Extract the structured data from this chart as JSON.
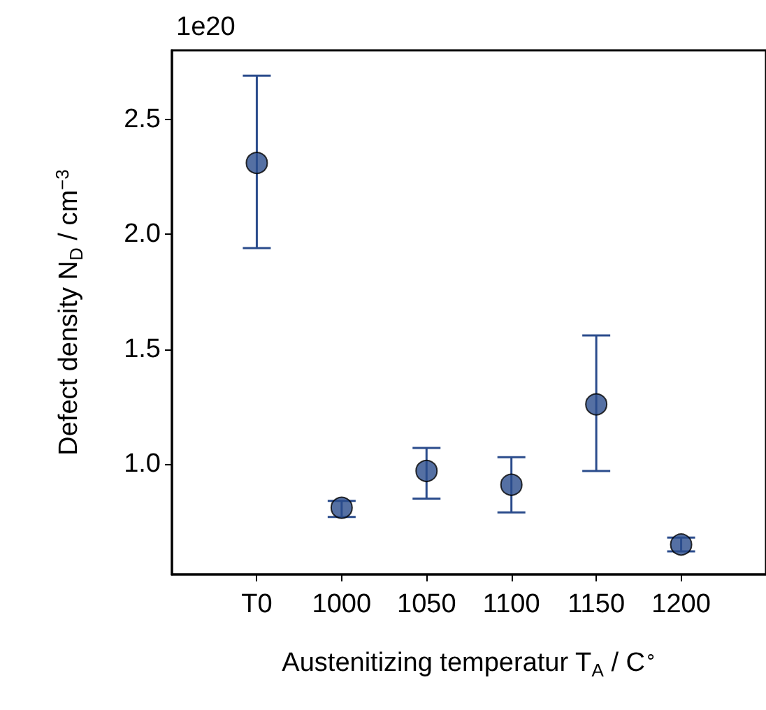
{
  "chart_data": {
    "type": "scatter",
    "categories": [
      "T0",
      "1000",
      "1050",
      "1100",
      "1150",
      "1200"
    ],
    "values": [
      2.31,
      0.81,
      0.97,
      0.91,
      1.26,
      0.65
    ],
    "errors": [
      [
        1.94,
        2.69
      ],
      [
        0.77,
        0.84
      ],
      [
        0.85,
        1.07
      ],
      [
        0.79,
        1.03
      ],
      [
        0.97,
        1.56
      ],
      [
        0.62,
        0.68
      ]
    ],
    "color": "#2b4c8c",
    "marker": "circle",
    "xlabel": "Austenitizing temperatur T$_{A}$ / C$^{∘}$",
    "ylabel": "Defect density N$_{D}$ / cm$^{−3}$",
    "ylim": [
      0.52,
      2.8
    ],
    "yticks": [
      {
        "value": 1.0,
        "label": "1.0"
      },
      {
        "value": 1.5,
        "label": "1.5"
      },
      {
        "value": 2.0,
        "label": "2.0"
      },
      {
        "value": 2.5,
        "label": "2.5"
      }
    ],
    "annotations": [
      "1e20"
    ],
    "grid": false
  }
}
